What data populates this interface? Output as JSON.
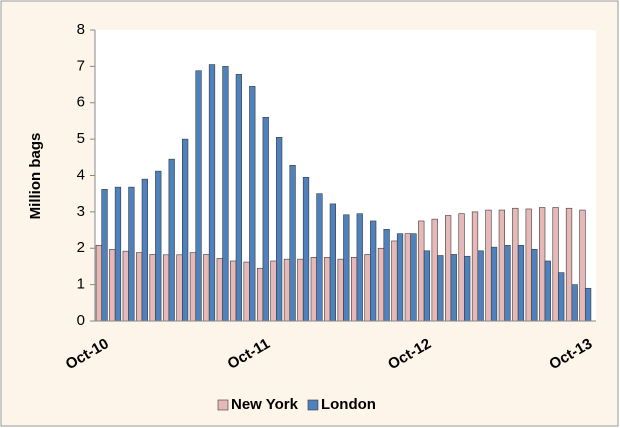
{
  "chart_data": {
    "type": "bar",
    "y_label": "Million bags",
    "categories": [
      "Oct-10",
      null,
      null,
      null,
      null,
      null,
      null,
      null,
      null,
      null,
      null,
      null,
      "Oct-11",
      null,
      null,
      null,
      null,
      null,
      null,
      null,
      null,
      null,
      null,
      null,
      "Oct-12",
      null,
      null,
      null,
      null,
      null,
      null,
      null,
      null,
      null,
      null,
      null,
      "Oct-13"
    ],
    "series": [
      {
        "name": "New York",
        "color": "#e6b9b8",
        "values": [
          2.08,
          1.97,
          1.92,
          1.88,
          1.83,
          1.82,
          1.82,
          1.88,
          1.83,
          1.72,
          1.65,
          1.62,
          1.45,
          1.65,
          1.7,
          1.7,
          1.75,
          1.75,
          1.7,
          1.75,
          1.83,
          2.0,
          2.2,
          2.4,
          2.75,
          2.8,
          2.9,
          2.95,
          3.0,
          3.05,
          3.05,
          3.1,
          3.08,
          3.12,
          3.12,
          3.1,
          3.05
        ]
      },
      {
        "name": "London",
        "color": "#4f81bd",
        "values": [
          3.62,
          3.68,
          3.68,
          3.9,
          4.12,
          4.45,
          5.0,
          6.88,
          7.05,
          7.0,
          6.78,
          6.45,
          5.6,
          5.05,
          4.28,
          3.95,
          3.5,
          3.22,
          2.92,
          2.95,
          2.75,
          2.52,
          2.4,
          2.4,
          1.93,
          1.8,
          1.83,
          1.78,
          1.93,
          2.03,
          2.08,
          2.08,
          1.97,
          1.65,
          1.33,
          1.0,
          0.9
        ]
      }
    ],
    "ylim": [
      0,
      8
    ],
    "yticks": [
      0,
      1,
      2,
      3,
      4,
      5,
      6,
      7,
      8
    ],
    "grid": false,
    "legend": "bottom"
  }
}
